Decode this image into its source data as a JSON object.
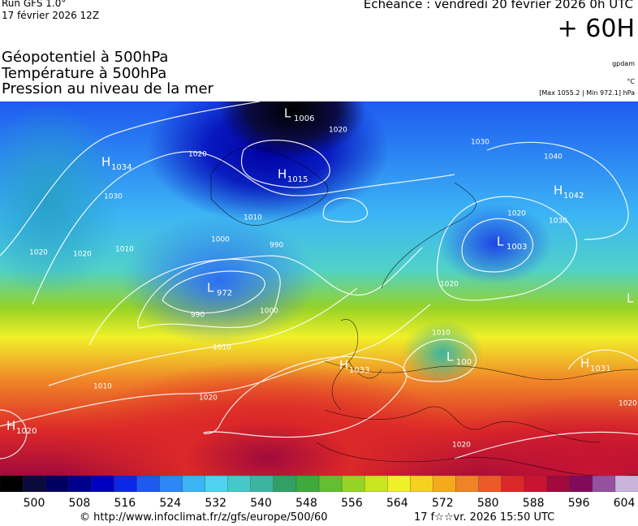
{
  "header": {
    "run": "Run GFS 1.0°",
    "run_date": "17 février 2026 12Z",
    "valid_time": "Echéance : vendredi 20 février 2026 0h UTC",
    "lead": "+ 60H",
    "fields": [
      "Géopotentiel à 500hPa",
      "Température à 500hPa",
      "Pression au niveau de la mer"
    ],
    "units": [
      "gpdam",
      "°C",
      "[Max 1055.2 | Min 972.1] hPa"
    ]
  },
  "pressure_centers": [
    {
      "kind": "H",
      "value": 1034
    },
    {
      "kind": "L",
      "value": 1006
    },
    {
      "kind": "H",
      "value": 1015
    },
    {
      "kind": "H",
      "value": 1042
    },
    {
      "kind": "L",
      "value": 1003
    },
    {
      "kind": "L",
      "value": 972
    },
    {
      "kind": "H",
      "value": 1033
    },
    {
      "kind": "L",
      "value": 100
    },
    {
      "kind": "H",
      "value": 1031
    },
    {
      "kind": "H",
      "value": 1020
    },
    {
      "kind": "L"
    }
  ],
  "isobar_labels": [
    1020,
    1030,
    1010,
    1020,
    1020,
    1010,
    1000,
    990,
    990,
    1000,
    1010,
    1010,
    1020,
    1020,
    1030,
    1040,
    1030,
    1020,
    1020,
    1010,
    1020,
    1020
  ],
  "colorbar": {
    "ticks": [
      500,
      508,
      516,
      524,
      532,
      540,
      548,
      556,
      564,
      572,
      580,
      588,
      596,
      604
    ],
    "colors": [
      "#000000",
      "#0a0a3c",
      "#000060",
      "#00008c",
      "#0000c0",
      "#0a28e6",
      "#1e5af0",
      "#2d87f5",
      "#3cb4f5",
      "#50d2f0",
      "#46c8c8",
      "#3cb4a0",
      "#32a064",
      "#3caa3c",
      "#64be32",
      "#96d228",
      "#c8e61e",
      "#f0f028",
      "#f5d21e",
      "#f5aa1e",
      "#f08228",
      "#eb5a28",
      "#dc2828",
      "#c81432",
      "#a00a3c",
      "#820a5a",
      "#9650a0",
      "#c8b4dc"
    ]
  },
  "footer": {
    "source": "© http://www.infoclimat.fr/z/gfs/europe/500/60",
    "generated": "17 f☆☆vr. 2026 15:50 UTC"
  }
}
